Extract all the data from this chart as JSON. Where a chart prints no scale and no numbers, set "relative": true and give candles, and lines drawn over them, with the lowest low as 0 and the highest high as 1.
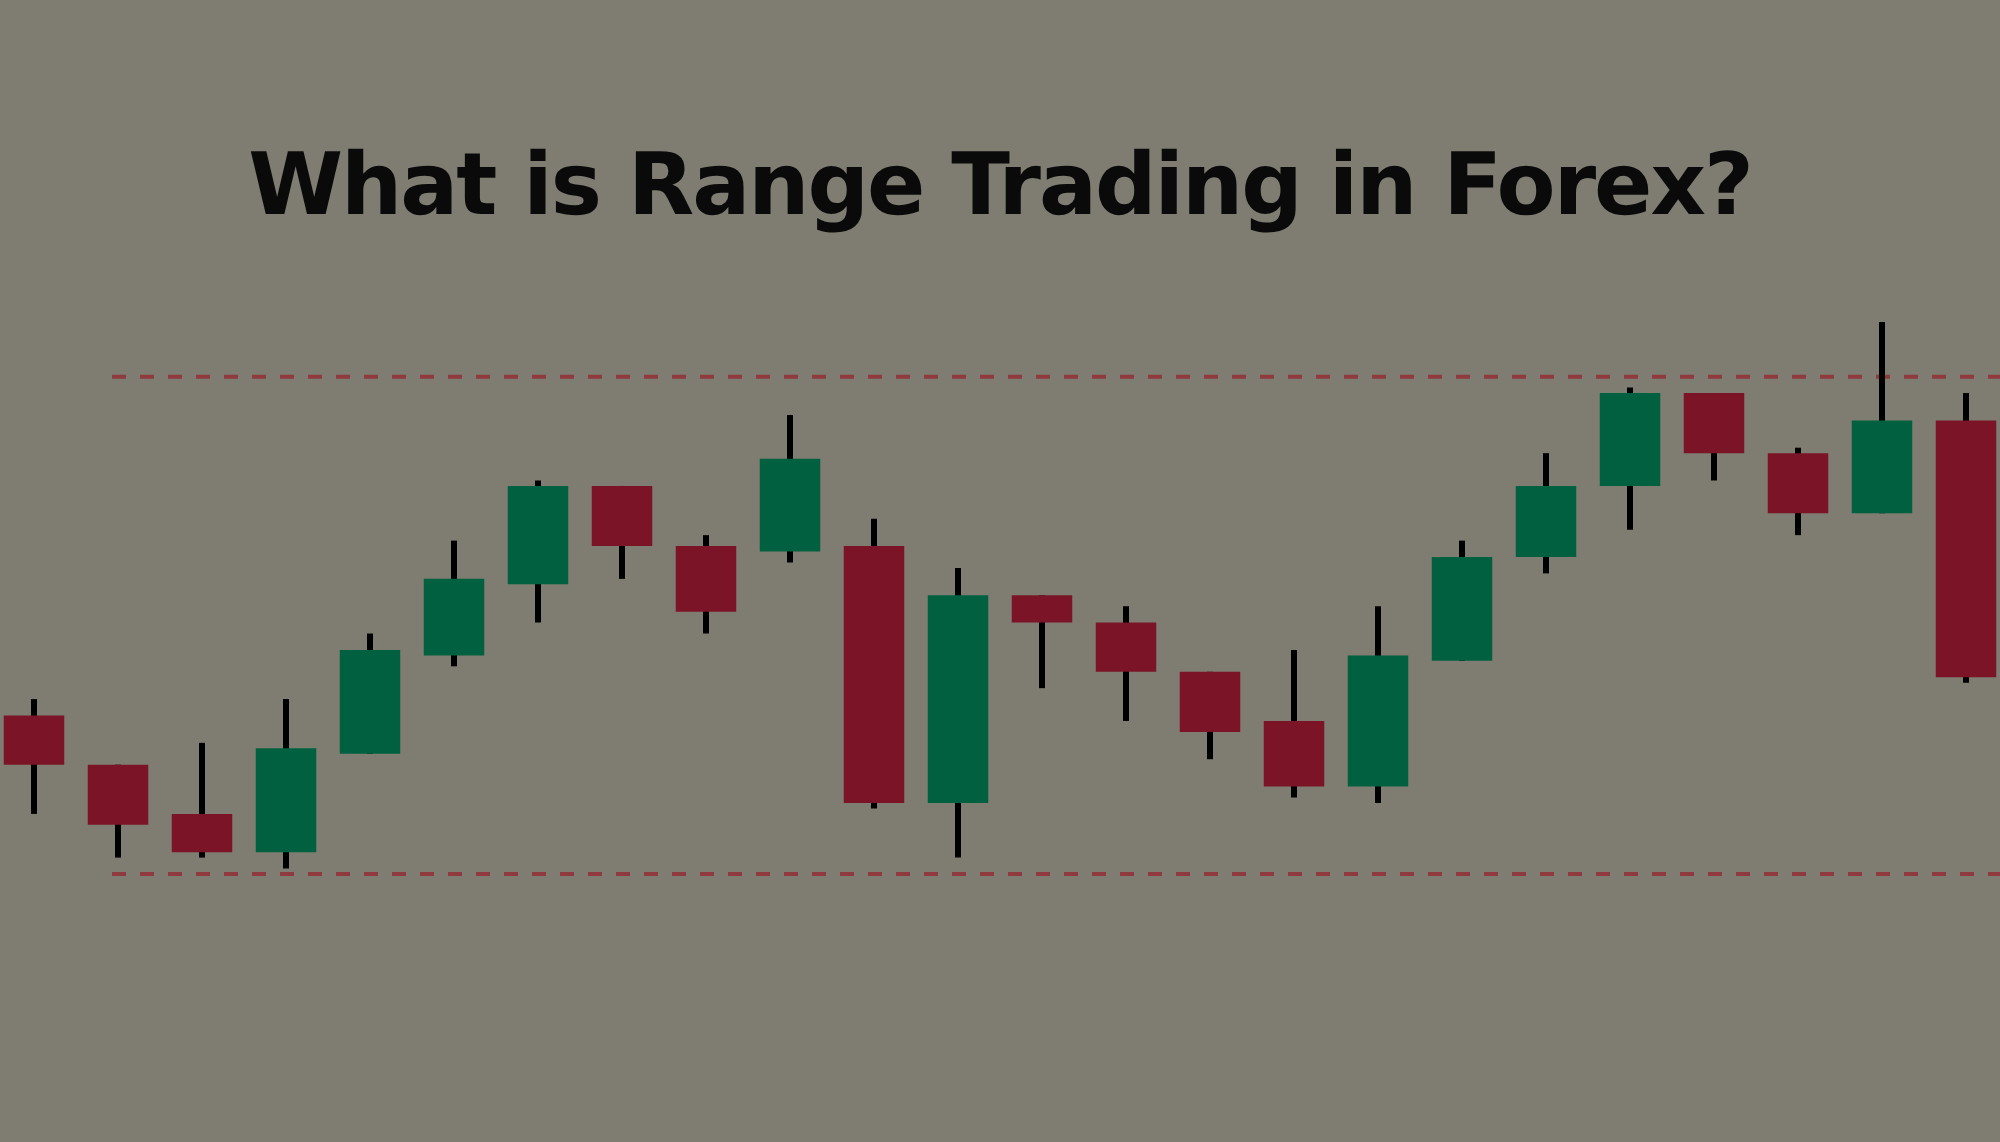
{
  "chart_data": {
    "type": "candlestick",
    "title": "What is Range Trading in Forex?",
    "relative": true,
    "categories": [
      null,
      null,
      null,
      null,
      null,
      null,
      null,
      null,
      null,
      null,
      null,
      null,
      null,
      null,
      null,
      null,
      null,
      null,
      null,
      null,
      null,
      null,
      null,
      null
    ],
    "ohlc": [
      [
        0.28,
        0.31,
        0.1,
        0.19
      ],
      [
        0.19,
        0.19,
        0.02,
        0.08
      ],
      [
        0.1,
        0.23,
        0.02,
        0.03
      ],
      [
        0.03,
        0.31,
        0,
        0.22
      ],
      [
        0.21,
        0.43,
        0.21,
        0.4
      ],
      [
        0.39,
        0.6,
        0.37,
        0.53
      ],
      [
        0.52,
        0.71,
        0.45,
        0.7
      ],
      [
        0.7,
        0.7,
        0.53,
        0.59
      ],
      [
        0.59,
        0.61,
        0.43,
        0.47
      ],
      [
        0.58,
        0.83,
        0.56,
        0.75
      ],
      [
        0.59,
        0.64,
        0.11,
        0.12
      ],
      [
        0.12,
        0.55,
        0.02,
        0.5
      ],
      [
        0.5,
        0.5,
        0.33,
        0.45
      ],
      [
        0.45,
        0.48,
        0.27,
        0.36
      ],
      [
        0.36,
        0.36,
        0.2,
        0.25
      ],
      [
        0.27,
        0.4,
        0.13,
        0.15
      ],
      [
        0.15,
        0.48,
        0.12,
        0.39
      ],
      [
        0.38,
        0.6,
        0.38,
        0.57
      ],
      [
        0.57,
        0.76,
        0.54,
        0.7
      ],
      [
        0.7,
        0.88,
        0.62,
        0.87
      ],
      [
        0.87,
        0.87,
        0.71,
        0.76
      ],
      [
        0.76,
        0.77,
        0.61,
        0.65
      ],
      [
        0.65,
        1,
        0.65,
        0.82
      ],
      [
        0.82,
        0.87,
        0.34,
        0.35
      ]
    ],
    "colors": [
      "#7b1427",
      "#7b1427",
      "#7b1427",
      "#00603f",
      "#00603f",
      "#00603f",
      "#00603f",
      "#7b1427",
      "#7b1427",
      "#00603f",
      "#7b1427",
      "#00603f",
      "#7b1427",
      "#7b1427",
      "#7b1427",
      "#7b1427",
      "#00603f",
      "#00603f",
      "#00603f",
      "#00603f",
      "#7b1427",
      "#7b1427",
      "#00603f",
      "#7b1427"
    ],
    "ref_lines": [
      {
        "axis": "y",
        "value": 0.9,
        "color": "#8e3a3f",
        "line_style": "dashed"
      },
      {
        "axis": "y",
        "value": -0.01,
        "color": "#8e3a3f",
        "line_style": "dashed"
      }
    ]
  }
}
